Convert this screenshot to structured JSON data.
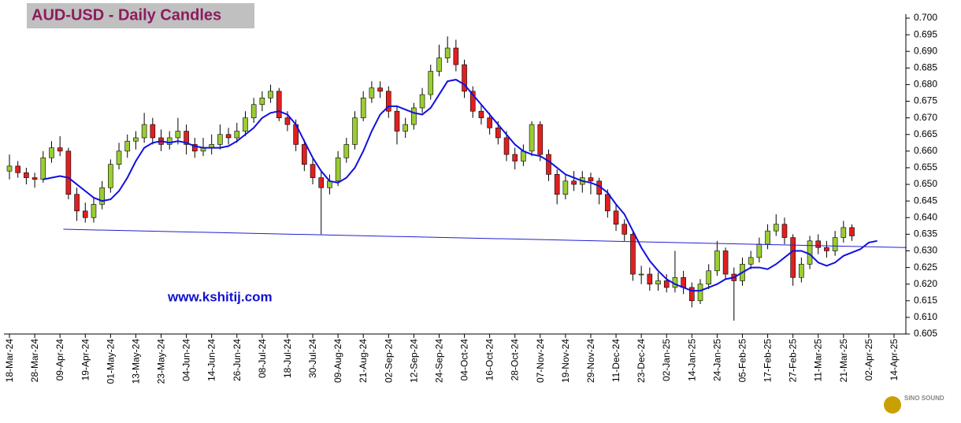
{
  "chart_data": {
    "type": "candlestick",
    "title": "AUD-USD - Daily Candles",
    "annotation": "www.kshitij.com",
    "watermark": "SINO SOUND",
    "categories": [
      "18-Mar-24",
      null,
      null,
      "28-Mar-24",
      null,
      null,
      "09-Apr-24",
      null,
      null,
      "19-Apr-24",
      null,
      null,
      "01-May-24",
      null,
      null,
      "13-May-24",
      null,
      null,
      "23-May-24",
      null,
      null,
      "04-Jun-24",
      null,
      null,
      "14-Jun-24",
      null,
      null,
      "26-Jun-24",
      null,
      null,
      "08-Jul-24",
      null,
      null,
      "18-Jul-24",
      null,
      null,
      "30-Jul-24",
      null,
      null,
      "09-Aug-24",
      null,
      null,
      "21-Aug-24",
      null,
      null,
      "02-Sep-24",
      null,
      null,
      "12-Sep-24",
      null,
      null,
      "24-Sep-24",
      null,
      null,
      "04-Oct-24",
      null,
      null,
      "16-Oct-24",
      null,
      null,
      "28-Oct-24",
      null,
      null,
      "07-Nov-24",
      null,
      null,
      "19-Nov-24",
      null,
      null,
      "29-Nov-24",
      null,
      null,
      "11-Dec-24",
      null,
      null,
      "23-Dec-24",
      null,
      null,
      "02-Jan-25",
      null,
      null,
      "14-Jan-25",
      null,
      null,
      "24-Jan-25",
      null,
      null,
      "05-Feb-25",
      null,
      null,
      "17-Feb-25",
      null,
      null,
      "27-Feb-25",
      null,
      null,
      "11-Mar-25",
      null,
      null,
      "21-Mar-25",
      null,
      null,
      "02-Apr-25",
      null,
      null,
      "14-Apr-25"
    ],
    "ohlc": [
      [
        0.654,
        0.659,
        0.6515,
        0.6555
      ],
      [
        0.6555,
        0.657,
        0.652,
        0.6535
      ],
      [
        0.6535,
        0.655,
        0.65,
        0.652
      ],
      [
        0.652,
        0.6535,
        0.649,
        0.6515
      ],
      [
        0.6515,
        0.66,
        0.6505,
        0.658
      ],
      [
        0.658,
        0.663,
        0.6565,
        0.661
      ],
      [
        0.661,
        0.6645,
        0.6585,
        0.66
      ],
      [
        0.66,
        0.661,
        0.6455,
        0.647
      ],
      [
        0.647,
        0.649,
        0.639,
        0.642
      ],
      [
        0.642,
        0.6445,
        0.6385,
        0.64
      ],
      [
        0.64,
        0.646,
        0.6385,
        0.644
      ],
      [
        0.644,
        0.651,
        0.6425,
        0.649
      ],
      [
        0.649,
        0.6575,
        0.6475,
        0.656
      ],
      [
        0.656,
        0.6625,
        0.6545,
        0.66
      ],
      [
        0.66,
        0.665,
        0.658,
        0.663
      ],
      [
        0.663,
        0.666,
        0.6605,
        0.664
      ],
      [
        0.664,
        0.6715,
        0.6625,
        0.668
      ],
      [
        0.668,
        0.67,
        0.662,
        0.664
      ],
      [
        0.664,
        0.6665,
        0.66,
        0.662
      ],
      [
        0.662,
        0.666,
        0.6605,
        0.664
      ],
      [
        0.664,
        0.67,
        0.662,
        0.666
      ],
      [
        0.666,
        0.668,
        0.659,
        0.662
      ],
      [
        0.662,
        0.664,
        0.658,
        0.66
      ],
      [
        0.66,
        0.664,
        0.6585,
        0.661
      ],
      [
        0.661,
        0.665,
        0.659,
        0.662
      ],
      [
        0.662,
        0.668,
        0.6605,
        0.665
      ],
      [
        0.665,
        0.667,
        0.662,
        0.664
      ],
      [
        0.664,
        0.6685,
        0.6625,
        0.666
      ],
      [
        0.666,
        0.672,
        0.6645,
        0.67
      ],
      [
        0.67,
        0.676,
        0.6685,
        0.674
      ],
      [
        0.674,
        0.678,
        0.672,
        0.676
      ],
      [
        0.676,
        0.68,
        0.6745,
        0.678
      ],
      [
        0.678,
        0.679,
        0.669,
        0.67
      ],
      [
        0.67,
        0.672,
        0.666,
        0.668
      ],
      [
        0.668,
        0.6695,
        0.66,
        0.662
      ],
      [
        0.662,
        0.6635,
        0.654,
        0.656
      ],
      [
        0.656,
        0.658,
        0.65,
        0.652
      ],
      [
        0.652,
        0.654,
        0.635,
        0.649
      ],
      [
        0.649,
        0.653,
        0.647,
        0.651
      ],
      [
        0.651,
        0.66,
        0.6495,
        0.658
      ],
      [
        0.658,
        0.664,
        0.6565,
        0.662
      ],
      [
        0.662,
        0.672,
        0.6605,
        0.67
      ],
      [
        0.67,
        0.678,
        0.669,
        0.676
      ],
      [
        0.676,
        0.681,
        0.6745,
        0.679
      ],
      [
        0.679,
        0.681,
        0.676,
        0.678
      ],
      [
        0.678,
        0.6795,
        0.67,
        0.672
      ],
      [
        0.672,
        0.6735,
        0.662,
        0.666
      ],
      [
        0.666,
        0.67,
        0.664,
        0.668
      ],
      [
        0.668,
        0.6745,
        0.6665,
        0.673
      ],
      [
        0.673,
        0.679,
        0.6715,
        0.677
      ],
      [
        0.677,
        0.686,
        0.6755,
        0.684
      ],
      [
        0.684,
        0.692,
        0.6825,
        0.688
      ],
      [
        0.688,
        0.6945,
        0.6865,
        0.691
      ],
      [
        0.691,
        0.6935,
        0.684,
        0.686
      ],
      [
        0.686,
        0.6875,
        0.676,
        0.678
      ],
      [
        0.678,
        0.6795,
        0.67,
        0.672
      ],
      [
        0.672,
        0.674,
        0.668,
        0.67
      ],
      [
        0.67,
        0.6715,
        0.665,
        0.667
      ],
      [
        0.667,
        0.669,
        0.662,
        0.664
      ],
      [
        0.664,
        0.666,
        0.657,
        0.659
      ],
      [
        0.659,
        0.661,
        0.6545,
        0.657
      ],
      [
        0.657,
        0.662,
        0.6555,
        0.66
      ],
      [
        0.66,
        0.669,
        0.6585,
        0.668
      ],
      [
        0.668,
        0.669,
        0.657,
        0.659
      ],
      [
        0.659,
        0.6605,
        0.651,
        0.653
      ],
      [
        0.653,
        0.6545,
        0.644,
        0.647
      ],
      [
        0.647,
        0.653,
        0.6455,
        0.651
      ],
      [
        0.651,
        0.654,
        0.648,
        0.65
      ],
      [
        0.65,
        0.654,
        0.6475,
        0.652
      ],
      [
        0.652,
        0.6535,
        0.647,
        0.651
      ],
      [
        0.651,
        0.652,
        0.644,
        0.647
      ],
      [
        0.647,
        0.6485,
        0.64,
        0.642
      ],
      [
        0.642,
        0.644,
        0.636,
        0.638
      ],
      [
        0.638,
        0.6395,
        0.633,
        0.635
      ],
      [
        0.635,
        0.636,
        0.621,
        0.623
      ],
      [
        0.623,
        0.6255,
        0.62,
        0.623
      ],
      [
        0.623,
        0.625,
        0.618,
        0.62
      ],
      [
        0.62,
        0.6235,
        0.618,
        0.621
      ],
      [
        0.621,
        0.623,
        0.6175,
        0.619
      ],
      [
        0.619,
        0.63,
        0.6175,
        0.622
      ],
      [
        0.622,
        0.624,
        0.617,
        0.619
      ],
      [
        0.619,
        0.6205,
        0.613,
        0.615
      ],
      [
        0.615,
        0.6215,
        0.614,
        0.62
      ],
      [
        0.62,
        0.626,
        0.6185,
        0.624
      ],
      [
        0.624,
        0.633,
        0.6225,
        0.63
      ],
      [
        0.63,
        0.631,
        0.6215,
        0.623
      ],
      [
        0.623,
        0.625,
        0.609,
        0.621
      ],
      [
        0.621,
        0.628,
        0.6195,
        0.626
      ],
      [
        0.626,
        0.63,
        0.6245,
        0.628
      ],
      [
        0.628,
        0.634,
        0.6265,
        0.632
      ],
      [
        0.632,
        0.638,
        0.6305,
        0.636
      ],
      [
        0.636,
        0.641,
        0.6345,
        0.638
      ],
      [
        0.638,
        0.64,
        0.632,
        0.634
      ],
      [
        0.634,
        0.635,
        0.6195,
        0.622
      ],
      [
        0.622,
        0.628,
        0.6205,
        0.626
      ],
      [
        0.626,
        0.6345,
        0.6245,
        0.633
      ],
      [
        0.633,
        0.635,
        0.629,
        0.631
      ],
      [
        0.631,
        0.633,
        0.628,
        0.63
      ],
      [
        0.63,
        0.636,
        0.6285,
        0.634
      ],
      [
        0.634,
        0.639,
        0.6325,
        0.637
      ],
      [
        0.637,
        0.638,
        0.633,
        0.6345
      ],
      null,
      null,
      null,
      null,
      null
    ],
    "up_color": "#9acd32",
    "down_color": "#e02020",
    "series": [
      {
        "color": "#1010e0",
        "values": [
          null,
          null,
          null,
          null,
          0.6515,
          0.652,
          0.6525,
          0.652,
          0.65,
          0.648,
          0.646,
          0.645,
          0.6455,
          0.648,
          0.652,
          0.657,
          0.661,
          0.6625,
          0.663,
          0.6625,
          0.663,
          0.6625,
          0.6615,
          0.661,
          0.661,
          0.661,
          0.6615,
          0.663,
          0.665,
          0.667,
          0.67,
          0.6715,
          0.672,
          0.671,
          0.668,
          0.663,
          0.658,
          0.654,
          0.651,
          0.6505,
          0.652,
          0.655,
          0.66,
          0.666,
          0.671,
          0.6735,
          0.6735,
          0.6725,
          0.6715,
          0.671,
          0.673,
          0.677,
          0.681,
          0.6815,
          0.68,
          0.677,
          0.674,
          0.671,
          0.668,
          0.665,
          0.662,
          0.66,
          0.659,
          0.6585,
          0.657,
          0.655,
          0.653,
          0.652,
          0.651,
          0.6505,
          0.6495,
          0.6475,
          0.644,
          0.641,
          0.636,
          0.631,
          0.627,
          0.624,
          0.6215,
          0.62,
          0.619,
          0.618,
          0.618,
          0.619,
          0.62,
          0.6215,
          0.622,
          0.6235,
          0.625,
          0.625,
          0.6245,
          0.626,
          0.628,
          0.63,
          0.63,
          0.629,
          0.6265,
          0.6255,
          0.6265,
          0.6285,
          0.6295,
          0.6305,
          0.6325,
          0.633,
          null,
          null
        ]
      }
    ],
    "trendline": {
      "color": "#2020d0",
      "x": [
        6.4,
        106.5
      ],
      "y": [
        0.6365,
        0.631
      ]
    },
    "ylim": [
      0.605,
      0.7
    ],
    "yticks": [
      0.605,
      {
        "value": 0.61,
        "label": "0.610"
      },
      0.615,
      {
        "value": 0.62,
        "label": "0.620"
      },
      0.625,
      {
        "value": 0.63,
        "label": "0.630"
      },
      0.635,
      {
        "value": 0.64,
        "label": "0.640"
      },
      0.645,
      {
        "value": 0.65,
        "label": "0.650"
      },
      0.655,
      {
        "value": 0.66,
        "label": "0.660"
      },
      0.665,
      {
        "value": 0.67,
        "label": "0.670"
      },
      0.675,
      {
        "value": 0.68,
        "label": "0.680"
      },
      0.685,
      {
        "value": 0.69,
        "label": "0.690"
      },
      0.695,
      {
        "value": 0.7,
        "label": "0.700"
      }
    ]
  }
}
